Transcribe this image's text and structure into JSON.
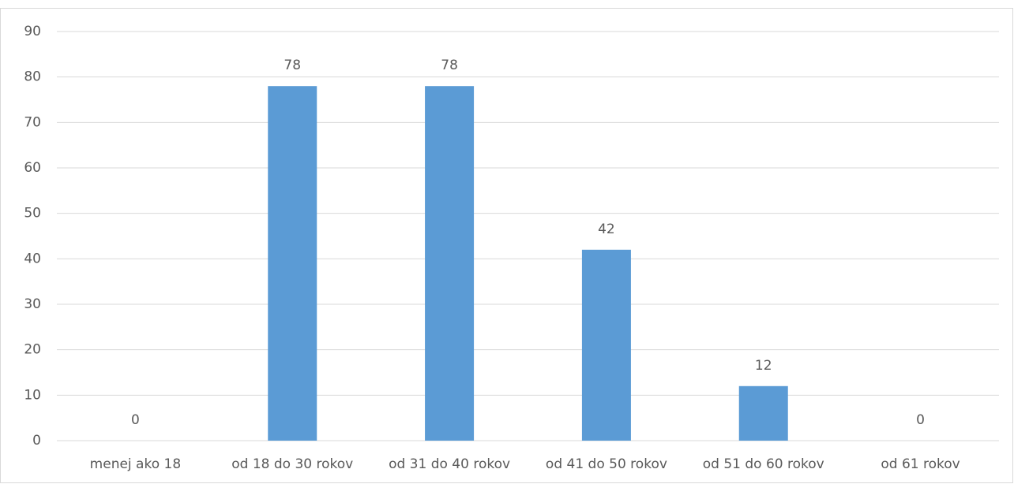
{
  "chart_data": {
    "type": "bar",
    "categories": [
      "menej ako 18",
      "od 18 do 30 rokov",
      "od 31 do 40 rokov",
      "od 41 do 50 rokov",
      "od 51 do 60 rokov",
      "od 61 rokov"
    ],
    "values": [
      0,
      78,
      78,
      42,
      12,
      0
    ],
    "color": "#5b9bd5",
    "ylim": [
      0,
      90
    ],
    "yticks": [
      0,
      10,
      20,
      30,
      40,
      50,
      60,
      70,
      80,
      90
    ],
    "grid": true
  }
}
